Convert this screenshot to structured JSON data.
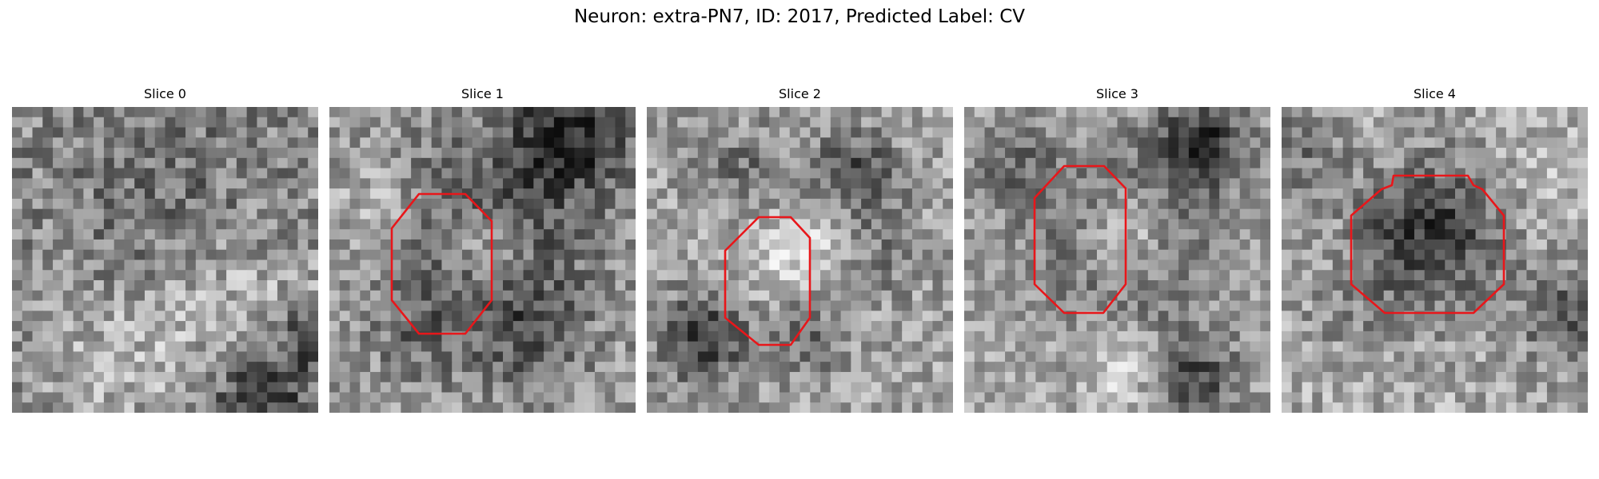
{
  "figure": {
    "title": "Neuron: extra-PN7, ID: 2017, Predicted Label: CV"
  },
  "panels": [
    {
      "title": "Slice 0",
      "has_outline": false
    },
    {
      "title": "Slice 1",
      "has_outline": true
    },
    {
      "title": "Slice 2",
      "has_outline": true
    },
    {
      "title": "Slice 3",
      "has_outline": true
    },
    {
      "title": "Slice 4",
      "has_outline": true
    }
  ],
  "colors": {
    "outline": "#e8161a",
    "background": "#ffffff"
  }
}
